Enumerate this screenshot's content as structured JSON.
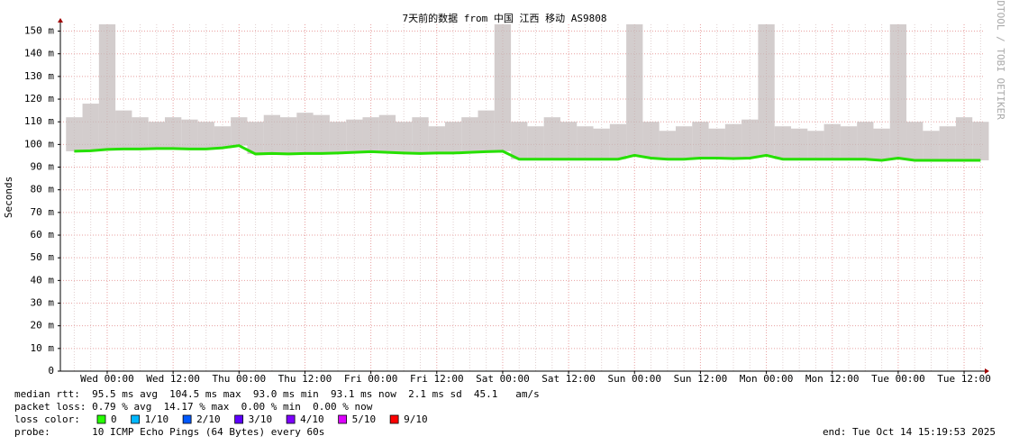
{
  "chart_data": {
    "type": "line",
    "title": "7天前的数据 from 中国 江西 移动 AS9808",
    "y_label": "Seconds",
    "watermark": "RRDTOOL / TOBI OETIKER",
    "categories": [
      null,
      null,
      "Wed 00:00",
      null,
      null,
      null,
      "Wed 12:00",
      null,
      null,
      null,
      "Thu 00:00",
      null,
      null,
      null,
      "Thu 12:00",
      null,
      null,
      null,
      "Fri 00:00",
      null,
      null,
      null,
      "Fri 12:00",
      null,
      null,
      null,
      "Sat 00:00",
      null,
      null,
      null,
      "Sat 12:00",
      null,
      null,
      null,
      "Sun 00:00",
      null,
      null,
      null,
      "Sun 12:00",
      null,
      null,
      null,
      "Mon 00:00",
      null,
      null,
      null,
      "Mon 12:00",
      null,
      null,
      null,
      "Tue 00:00",
      null,
      null,
      null,
      "Tue 12:00",
      null
    ],
    "series": [
      {
        "name": "median rtt",
        "color": "#26e000",
        "values": [
          0.097,
          0.0972,
          0.0978,
          0.098,
          0.098,
          0.0982,
          0.0982,
          0.098,
          0.098,
          0.0985,
          0.0995,
          0.0958,
          0.096,
          0.0958,
          0.096,
          0.096,
          0.0962,
          0.0965,
          0.0968,
          0.0965,
          0.0962,
          0.096,
          0.0962,
          0.0962,
          0.0965,
          0.0968,
          0.097,
          0.0935,
          0.0935,
          0.0935,
          0.0935,
          0.0935,
          0.0935,
          0.0935,
          0.0952,
          0.094,
          0.0935,
          0.0935,
          0.094,
          0.094,
          0.0938,
          0.094,
          0.0952,
          0.0935,
          0.0935,
          0.0935,
          0.0935,
          0.0935,
          0.0935,
          0.093,
          0.094,
          0.093,
          0.093,
          0.093,
          0.093,
          0.093
        ]
      }
    ],
    "smoke": {
      "color": "#c4bcbc",
      "values": [
        0.112,
        0.118,
        0.153,
        0.115,
        0.112,
        0.11,
        0.112,
        0.111,
        0.11,
        0.108,
        0.112,
        0.11,
        0.113,
        0.112,
        0.114,
        0.113,
        0.11,
        0.111,
        0.112,
        0.113,
        0.11,
        0.112,
        0.108,
        0.11,
        0.112,
        0.115,
        0.153,
        0.11,
        0.108,
        0.112,
        0.11,
        0.108,
        0.107,
        0.109,
        0.153,
        0.11,
        0.106,
        0.108,
        0.11,
        0.107,
        0.109,
        0.111,
        0.153,
        0.108,
        0.107,
        0.106,
        0.109,
        0.108,
        0.11,
        0.107,
        0.153,
        0.11,
        0.106,
        0.108,
        0.112,
        0.11
      ]
    },
    "ylim": [
      0,
      0.153
    ],
    "yticks": [
      0,
      {
        "value": 0.01,
        "label": "10 m"
      },
      {
        "value": 0.02,
        "label": "20 m"
      },
      {
        "value": 0.03,
        "label": "30 m"
      },
      {
        "value": 0.04,
        "label": "40 m"
      },
      {
        "value": 0.05,
        "label": "50 m"
      },
      {
        "value": 0.06,
        "label": "60 m"
      },
      {
        "value": 0.07,
        "label": "70 m"
      },
      {
        "value": 0.08,
        "label": "80 m"
      },
      {
        "value": 0.09,
        "label": "90 m"
      },
      {
        "value": 0.1,
        "label": "100 m"
      },
      {
        "value": 0.11,
        "label": "110 m"
      },
      {
        "value": 0.12,
        "label": "120 m"
      },
      {
        "value": 0.13,
        "label": "130 m"
      },
      {
        "value": 0.14,
        "label": "140 m"
      },
      {
        "value": 0.15,
        "label": "150 m"
      }
    ],
    "grid": true,
    "stats": [
      "median rtt:  95.5 ms avg  104.5 ms max  93.0 ms min  93.1 ms now  2.1 ms sd  45.1   am/s",
      "packet loss: 0.79 % avg  14.17 % max  0.00 % min  0.00 % now"
    ],
    "loss_legend": {
      "label": "loss color:",
      "items": [
        {
          "label": "0",
          "color": "#26ff00"
        },
        {
          "label": "1/10",
          "color": "#00b8ff"
        },
        {
          "label": "2/10",
          "color": "#0059ff"
        },
        {
          "label": "3/10",
          "color": "#5e00ff"
        },
        {
          "label": "4/10",
          "color": "#7e00ff"
        },
        {
          "label": "5/10",
          "color": "#dd00ff"
        },
        {
          "label": "9/10",
          "color": "#ff0000"
        }
      ]
    },
    "probe": "probe:       10 ICMP Echo Pings (64 Bytes) every 60s",
    "end": "end: Tue Oct 14 15:19:53 2025"
  }
}
